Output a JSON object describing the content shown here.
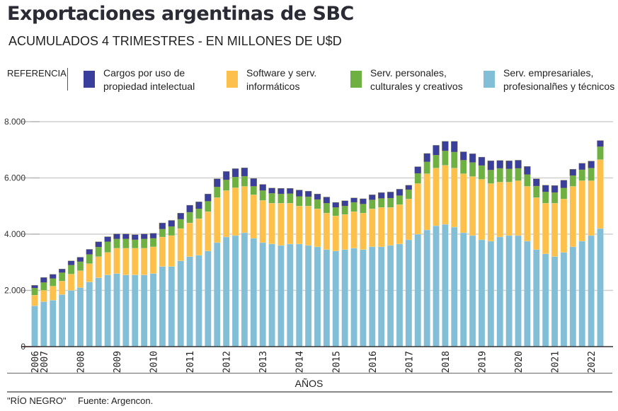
{
  "header": {
    "title": "Exportaciones argentinas de SBC",
    "subtitle": "ACUMULADOS 4 TRIMESTRES - EN MILLONES DE U$D"
  },
  "legend": {
    "label": "REFERENCIA",
    "items": [
      {
        "name": "Cargos por uso de\npropiedad intelectual",
        "color": "#3a3f9c"
      },
      {
        "name": "Software y serv.\ninformáticos",
        "color": "#fdc04a"
      },
      {
        "name": "Serv. personales,\nculturales y creativos",
        "color": "#6fb043"
      },
      {
        "name": "Serv. empresariales,\nprofesionalñes y técnicos",
        "color": "#82bfd6"
      }
    ]
  },
  "footer": {
    "credit": "\"RÍO NEGRO\"",
    "source": "Fuente: Argencon."
  },
  "chart_data": {
    "type": "bar",
    "stacked": true,
    "title": "Exportaciones argentinas de SBC",
    "subtitle": "ACUMULADOS 4 TRIMESTRES - EN MILLONES DE U$D",
    "xlabel": "AÑOS",
    "ylabel": "",
    "ylim": [
      0,
      8000
    ],
    "yticks": [
      0,
      2000,
      4000,
      6000,
      8000
    ],
    "ytick_labels": [
      "0",
      "2.000",
      "4.000",
      "6.000",
      "8.000"
    ],
    "grid": true,
    "legend_position": "top",
    "xtick_labels": [
      {
        "label": "2006",
        "index": 0
      },
      {
        "label": "2007",
        "index": 1
      },
      {
        "label": "2008",
        "index": 5
      },
      {
        "label": "2009",
        "index": 9
      },
      {
        "label": "2010",
        "index": 13
      },
      {
        "label": "2011",
        "index": 17
      },
      {
        "label": "2012",
        "index": 21
      },
      {
        "label": "2013",
        "index": 25
      },
      {
        "label": "2014",
        "index": 29
      },
      {
        "label": "2015",
        "index": 33
      },
      {
        "label": "2016",
        "index": 37
      },
      {
        "label": "2017",
        "index": 41
      },
      {
        "label": "2018",
        "index": 45
      },
      {
        "label": "2019",
        "index": 49
      },
      {
        "label": "2020",
        "index": 53
      },
      {
        "label": "2021",
        "index": 57
      },
      {
        "label": "2022",
        "index": 61
      }
    ],
    "categories": [
      "2006-Q4",
      "2007-Q1",
      "2007-Q2",
      "2007-Q3",
      "2007-Q4",
      "2008-Q1",
      "2008-Q2",
      "2008-Q3",
      "2008-Q4",
      "2009-Q1",
      "2009-Q2",
      "2009-Q3",
      "2009-Q4",
      "2010-Q1",
      "2010-Q2",
      "2010-Q3",
      "2010-Q4",
      "2011-Q1",
      "2011-Q2",
      "2011-Q3",
      "2011-Q4",
      "2012-Q1",
      "2012-Q2",
      "2012-Q3",
      "2012-Q4",
      "2013-Q1",
      "2013-Q2",
      "2013-Q3",
      "2013-Q4",
      "2014-Q1",
      "2014-Q2",
      "2014-Q3",
      "2014-Q4",
      "2015-Q1",
      "2015-Q2",
      "2015-Q3",
      "2015-Q4",
      "2016-Q1",
      "2016-Q2",
      "2016-Q3",
      "2016-Q4",
      "2017-Q1",
      "2017-Q2",
      "2017-Q3",
      "2017-Q4",
      "2018-Q1",
      "2018-Q2",
      "2018-Q3",
      "2018-Q4",
      "2019-Q1",
      "2019-Q2",
      "2019-Q3",
      "2019-Q4",
      "2020-Q1",
      "2020-Q2",
      "2020-Q3",
      "2020-Q4",
      "2021-Q1",
      "2021-Q2",
      "2021-Q3",
      "2021-Q4",
      "2022-Q1",
      "2022-Q2"
    ],
    "series": [
      {
        "name": "Serv. empresariales, profesionalñes y técnicos",
        "color": "#82bfd6",
        "values": [
          1450,
          1600,
          1650,
          1850,
          2000,
          2100,
          2300,
          2450,
          2550,
          2600,
          2550,
          2550,
          2550,
          2600,
          2850,
          2850,
          3050,
          3200,
          3250,
          3400,
          3700,
          3900,
          3950,
          4050,
          3850,
          3700,
          3650,
          3600,
          3650,
          3650,
          3600,
          3550,
          3450,
          3400,
          3450,
          3500,
          3450,
          3550,
          3550,
          3600,
          3650,
          3800,
          4000,
          4150,
          4300,
          4350,
          4250,
          4050,
          3950,
          3800,
          3750,
          3900,
          3950,
          3950,
          3750,
          3450,
          3300,
          3200,
          3350,
          3550,
          3750,
          3950,
          4200
        ]
      },
      {
        "name": "Software y serv. informáticos",
        "color": "#fdc04a",
        "values": [
          380,
          400,
          500,
          480,
          580,
          600,
          650,
          750,
          800,
          900,
          950,
          950,
          950,
          950,
          1050,
          1100,
          1150,
          1200,
          1300,
          1400,
          1600,
          1650,
          1700,
          1650,
          1550,
          1500,
          1450,
          1500,
          1450,
          1350,
          1400,
          1350,
          1300,
          1250,
          1250,
          1300,
          1300,
          1350,
          1400,
          1350,
          1400,
          1450,
          1800,
          2000,
          2050,
          2100,
          2100,
          2100,
          2100,
          2150,
          2050,
          1950,
          1900,
          1950,
          1950,
          1850,
          1800,
          1900,
          1900,
          2150,
          2150,
          1950,
          2450
        ]
      },
      {
        "name": "Serv. personales, culturales y creativos",
        "color": "#6fb043",
        "values": [
          250,
          280,
          270,
          300,
          320,
          320,
          330,
          340,
          380,
          330,
          330,
          300,
          330,
          300,
          280,
          320,
          330,
          380,
          350,
          370,
          380,
          380,
          380,
          360,
          300,
          350,
          350,
          330,
          340,
          340,
          330,
          330,
          350,
          300,
          300,
          330,
          320,
          320,
          320,
          330,
          320,
          330,
          360,
          420,
          460,
          510,
          570,
          480,
          500,
          490,
          480,
          490,
          470,
          440,
          420,
          410,
          400,
          380,
          390,
          380,
          390,
          450,
          460
        ]
      },
      {
        "name": "Cargos por uso de propiedad intelectual",
        "color": "#3a3f9c",
        "values": [
          100,
          180,
          150,
          130,
          150,
          160,
          180,
          190,
          180,
          180,
          180,
          180,
          180,
          180,
          220,
          220,
          220,
          250,
          250,
          260,
          290,
          300,
          300,
          300,
          280,
          220,
          190,
          200,
          190,
          230,
          200,
          200,
          220,
          180,
          190,
          160,
          190,
          180,
          210,
          220,
          230,
          160,
          240,
          300,
          350,
          340,
          380,
          300,
          310,
          300,
          330,
          280,
          290,
          290,
          290,
          260,
          240,
          250,
          280,
          230,
          230,
          250,
          220
        ]
      }
    ]
  }
}
